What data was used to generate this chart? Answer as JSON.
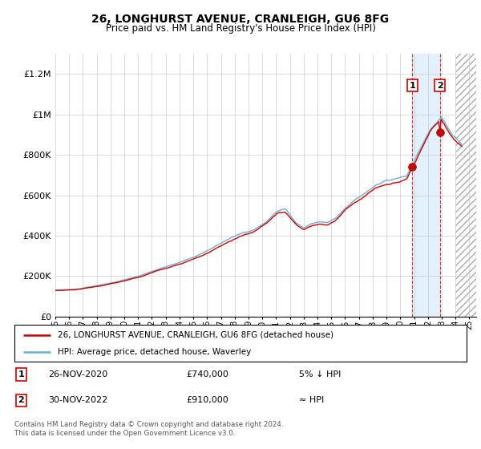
{
  "title": "26, LONGHURST AVENUE, CRANLEIGH, GU6 8FG",
  "subtitle": "Price paid vs. HM Land Registry's House Price Index (HPI)",
  "ylabel_ticks": [
    "£0",
    "£200K",
    "£400K",
    "£600K",
    "£800K",
    "£1M",
    "£1.2M"
  ],
  "ytick_values": [
    0,
    200000,
    400000,
    600000,
    800000,
    1000000,
    1200000
  ],
  "ylim": [
    0,
    1300000
  ],
  "xlim_start": 1995.0,
  "xlim_end": 2025.5,
  "hpi_color": "#6baed6",
  "price_color": "#cc0000",
  "shade_color": "#ddeeff",
  "hatch_color": "#cccccc",
  "dashed_line_color": "#cc0000",
  "sale1_year": 2020,
  "sale1_month": 11,
  "sale1_price": 740000,
  "sale1_label": "1",
  "sale2_year": 2022,
  "sale2_month": 11,
  "sale2_price": 910000,
  "sale2_label": "2",
  "legend_line1": "26, LONGHURST AVENUE, CRANLEIGH, GU6 8FG (detached house)",
  "legend_line2": "HPI: Average price, detached house, Waverley",
  "note1_num": "1",
  "note1_date": "26-NOV-2020",
  "note1_price": "£740,000",
  "note1_rel": "5% ↓ HPI",
  "note2_num": "2",
  "note2_date": "30-NOV-2022",
  "note2_price": "£910,000",
  "note2_rel": "≈ HPI",
  "footer": "Contains HM Land Registry data © Crown copyright and database right 2024.\nThis data is licensed under the Open Government Licence v3.0.",
  "data_end_year": 2024.0,
  "hatch_start": 2024.0
}
